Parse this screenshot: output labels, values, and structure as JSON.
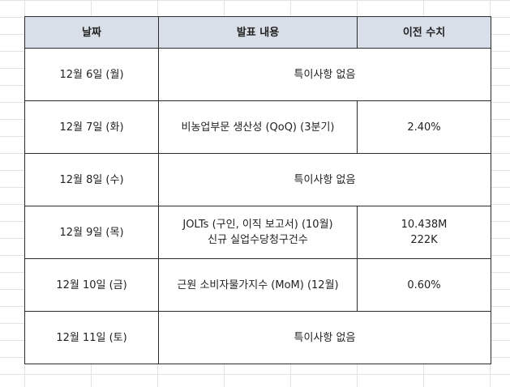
{
  "table": {
    "headers": [
      "날짜",
      "발표 내용",
      "이전 수치"
    ],
    "rows": [
      {
        "date": "12월 6일 (월)",
        "content": [
          "특이사항 없음"
        ],
        "prev": []
      },
      {
        "date": "12월 7일 (화)",
        "content": [
          "비농업부문 생산성 (QoQ) (3분기)"
        ],
        "prev": [
          "2.40%"
        ]
      },
      {
        "date": "12월 8일 (수)",
        "content": [
          "특이사항 없음"
        ],
        "prev": []
      },
      {
        "date": "12월 9일 (목)",
        "content": [
          "JOLTs (구인, 이직 보고서) (10월)",
          "신규 실업수당청구건수"
        ],
        "prev": [
          "10.438M",
          "222K"
        ]
      },
      {
        "date": "12월 10일 (금)",
        "content": [
          "근원 소비자물가지수 (MoM) (12월)"
        ],
        "prev": [
          "0.60%"
        ]
      },
      {
        "date": "12월 11일 (토)",
        "content": [
          "특이사항 없음"
        ],
        "prev": []
      }
    ]
  },
  "colors": {
    "header_bg": "#d9dfe8",
    "border": "#2b2b2b",
    "gridline": "#e3e3e3"
  }
}
